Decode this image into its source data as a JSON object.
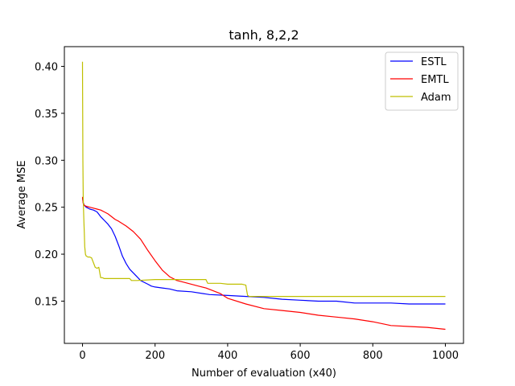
{
  "chart_data": {
    "type": "line",
    "title": "tanh, 8,2,2",
    "xlabel": "Number of evaluation (x40)",
    "ylabel": "Average MSE",
    "xlim": [
      -50,
      1050
    ],
    "ylim": [
      0.105,
      0.421
    ],
    "xticks": [
      0,
      200,
      400,
      600,
      800,
      1000
    ],
    "yticks": [
      0.15,
      0.2,
      0.25,
      0.3,
      0.35,
      0.4
    ],
    "ytick_labels": [
      "0.15",
      "0.20",
      "0.25",
      "0.30",
      "0.35",
      "0.40"
    ],
    "grid": false,
    "legend_position": "top-right",
    "series": [
      {
        "name": "ESTL",
        "color": "#0000ff",
        "x": [
          0,
          2,
          5,
          10,
          20,
          30,
          40,
          50,
          60,
          70,
          80,
          90,
          100,
          110,
          120,
          130,
          140,
          150,
          160,
          170,
          180,
          190,
          200,
          220,
          240,
          260,
          300,
          350,
          400,
          450,
          500,
          550,
          600,
          650,
          700,
          750,
          800,
          850,
          900,
          950,
          1000
        ],
        "y": [
          0.26,
          0.255,
          0.252,
          0.25,
          0.248,
          0.247,
          0.245,
          0.24,
          0.236,
          0.232,
          0.227,
          0.219,
          0.209,
          0.198,
          0.19,
          0.184,
          0.18,
          0.176,
          0.172,
          0.17,
          0.168,
          0.166,
          0.165,
          0.164,
          0.163,
          0.161,
          0.16,
          0.157,
          0.156,
          0.155,
          0.154,
          0.152,
          0.151,
          0.15,
          0.15,
          0.148,
          0.148,
          0.148,
          0.147,
          0.147,
          0.147
        ]
      },
      {
        "name": "EMTL",
        "color": "#ff0000",
        "x": [
          0,
          2,
          5,
          10,
          20,
          30,
          40,
          50,
          60,
          70,
          80,
          90,
          100,
          120,
          140,
          160,
          180,
          200,
          220,
          240,
          260,
          280,
          300,
          320,
          340,
          360,
          380,
          400,
          450,
          500,
          550,
          600,
          650,
          700,
          750,
          800,
          850,
          900,
          950,
          1000
        ],
        "y": [
          0.261,
          0.254,
          0.252,
          0.251,
          0.25,
          0.249,
          0.248,
          0.247,
          0.245,
          0.243,
          0.24,
          0.237,
          0.235,
          0.23,
          0.224,
          0.216,
          0.204,
          0.193,
          0.183,
          0.176,
          0.172,
          0.17,
          0.168,
          0.166,
          0.164,
          0.161,
          0.158,
          0.153,
          0.147,
          0.142,
          0.14,
          0.138,
          0.135,
          0.133,
          0.131,
          0.128,
          0.124,
          0.123,
          0.122,
          0.12
        ]
      },
      {
        "name": "Adam",
        "color": "#bfbf00",
        "x": [
          0,
          1,
          2,
          3,
          4,
          5,
          6,
          8,
          10,
          15,
          20,
          25,
          30,
          35,
          40,
          45,
          50,
          55,
          60,
          80,
          100,
          130,
          135,
          150,
          200,
          250,
          300,
          340,
          345,
          380,
          400,
          420,
          440,
          450,
          452,
          455,
          460,
          500,
          600,
          700,
          800,
          900,
          1000
        ],
        "y": [
          0.405,
          0.3,
          0.262,
          0.245,
          0.234,
          0.222,
          0.208,
          0.2,
          0.198,
          0.197,
          0.197,
          0.196,
          0.191,
          0.186,
          0.185,
          0.186,
          0.175,
          0.175,
          0.174,
          0.174,
          0.174,
          0.174,
          0.172,
          0.172,
          0.173,
          0.173,
          0.173,
          0.173,
          0.169,
          0.169,
          0.168,
          0.168,
          0.168,
          0.167,
          0.162,
          0.156,
          0.155,
          0.155,
          0.155,
          0.155,
          0.155,
          0.155,
          0.155
        ]
      }
    ]
  }
}
